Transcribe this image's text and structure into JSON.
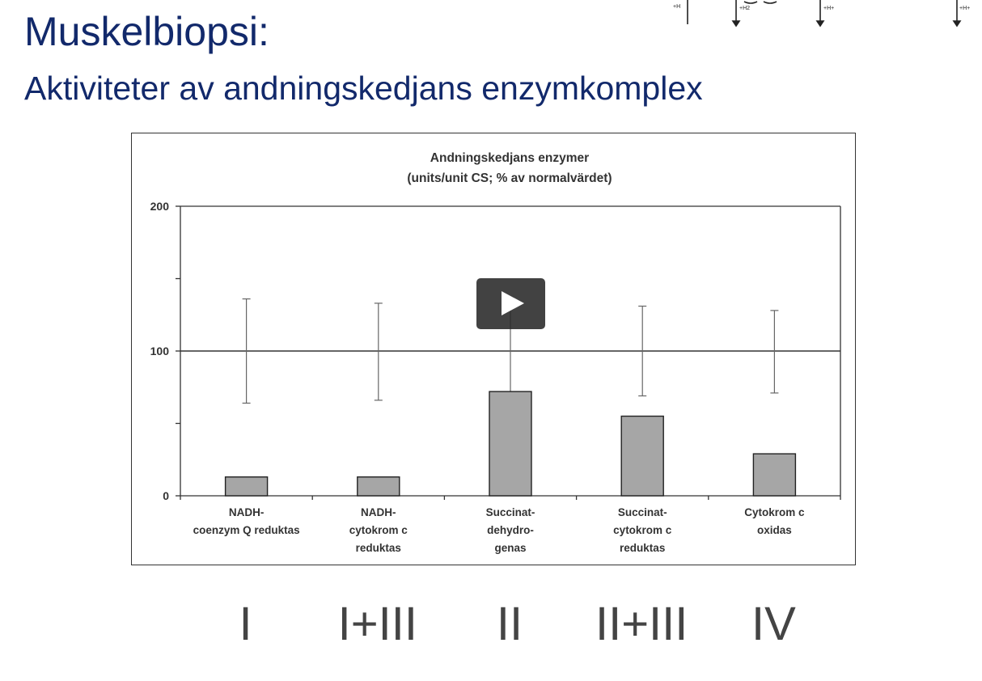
{
  "slide": {
    "title": "Muskelbiopsi:",
    "subtitle": "Aktiviteter av andningskedjans enzymkomplex"
  },
  "decoration": {
    "labels": [
      "+H",
      "+H2",
      "+H+",
      "+H+"
    ]
  },
  "chart_data": {
    "type": "bar",
    "title_lines": [
      "Andningskedjans enzymer",
      "(units/unit CS; % av normalvärdet)"
    ],
    "categories": [
      [
        "NADH-",
        "coenzym Q reduktas"
      ],
      [
        "NADH-",
        "cytokrom c",
        "reduktas"
      ],
      [
        "Succinat-",
        "dehydro-",
        "genas"
      ],
      [
        "Succinat-",
        "cytokrom c",
        "reduktas"
      ],
      [
        "Cytokrom c",
        "oxidas"
      ]
    ],
    "values": [
      13,
      13,
      72,
      55,
      29
    ],
    "error_ranges": [
      [
        64,
        136
      ],
      [
        66,
        133
      ],
      [
        72,
        136
      ],
      [
        69,
        131
      ],
      [
        71,
        128
      ]
    ],
    "reference_line": 100,
    "yticks": [
      0,
      100,
      200
    ],
    "ylim": [
      0,
      200
    ],
    "bar_color": "#a6a6a6"
  },
  "complex_labels": [
    "I",
    "I+III",
    "II",
    "II+III",
    "IV"
  ],
  "video": {
    "play_icon": "play-icon"
  }
}
